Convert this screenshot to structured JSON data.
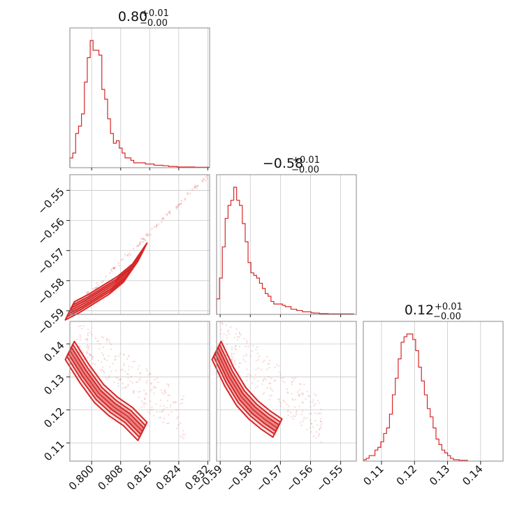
{
  "color": "#d62728",
  "chart_data": {
    "type": "corner",
    "parameters": [
      {
        "title_main": "0.80",
        "title_plus": "+0.01",
        "title_minus": "−0.00",
        "range": [
          0.794,
          0.8325
        ],
        "ticks": [
          0.8,
          0.808,
          0.816,
          0.824,
          0.832
        ],
        "tick_labels": [
          "0.800",
          "0.808",
          "0.816",
          "0.824",
          "0.832"
        ],
        "hist": {
          "edges_start": 0.794,
          "bin_width": 0.0008,
          "counts": [
            4,
            6,
            14,
            17,
            22,
            35,
            45,
            52,
            48,
            48,
            46,
            32,
            28,
            20,
            14,
            10,
            11,
            8,
            6,
            4,
            4,
            3,
            2,
            2,
            2,
            2,
            1.5,
            1.5,
            1.5,
            1,
            1,
            1,
            0.8,
            0.8,
            0.5,
            0.5,
            0.5,
            0.3,
            0.3,
            0.3,
            0.3,
            0.3,
            0.3,
            0.2,
            0.2,
            0.2,
            0.2,
            0.2
          ]
        }
      },
      {
        "title_main": "−0.58",
        "title_plus": "+0.01",
        "title_minus": "−0.00",
        "range": [
          -0.5912,
          -0.5448
        ],
        "ticks": [
          -0.59,
          -0.58,
          -0.57,
          -0.56,
          -0.55
        ],
        "tick_labels": [
          "−0.59",
          "−0.58",
          "−0.57",
          "−0.56",
          "−0.55"
        ],
        "hist": {
          "edges_start": -0.5912,
          "bin_width": 0.00095,
          "counts": [
            6,
            14,
            26,
            37,
            42,
            44,
            49,
            44,
            42,
            35,
            28,
            20,
            16,
            15,
            14,
            12,
            10,
            8,
            7,
            5,
            4,
            4,
            4,
            3.5,
            3,
            3,
            2,
            2,
            1.5,
            1.5,
            1,
            1,
            1,
            0.6,
            0.5,
            0.5,
            0.3,
            0.3,
            0.3,
            0.2,
            0.2,
            0.2,
            0.2,
            0.2,
            0.2,
            0.2,
            0.2,
            0.2
          ]
        }
      },
      {
        "title_main": "0.12",
        "title_plus": "+0.01",
        "title_minus": "−0.00",
        "range": [
          0.1045,
          0.1468
        ],
        "ticks": [
          0.11,
          0.12,
          0.13,
          0.14
        ],
        "tick_labels": [
          "0.11",
          "0.12",
          "0.13",
          "0.14"
        ],
        "hist": {
          "edges_start": 0.1045,
          "bin_width": 0.00088,
          "counts": [
            0.5,
            1,
            2,
            2,
            4,
            5,
            7,
            10,
            12,
            17,
            24,
            30,
            37,
            43,
            45,
            46,
            46,
            44,
            40,
            34,
            29,
            24,
            19,
            16,
            12,
            8,
            6,
            4,
            3,
            2,
            1,
            0.5,
            0.5,
            0.3,
            0.3,
            0.3
          ]
        }
      }
    ],
    "pairs": [
      {
        "x_param": 0,
        "y_param": 1,
        "band": {
          "x": [
            0.794,
            0.798,
            0.802,
            0.806,
            0.81,
            0.814
          ],
          "y": [
            -0.59,
            -0.5875,
            -0.5845,
            -0.5815,
            -0.5775,
            -0.5705
          ]
        },
        "scatter_line": {
          "x": [
            0.794,
            0.832
          ],
          "y": [
            -0.5905,
            -0.5452
          ]
        }
      },
      {
        "x_param": 0,
        "y_param": 2,
        "band": {
          "x": [
            0.794,
            0.798,
            0.802,
            0.806,
            0.81,
            0.814
          ],
          "y": [
            0.138,
            0.131,
            0.125,
            0.121,
            0.118,
            0.1135
          ]
        },
        "scatter_cloud": {
          "x": [
            0.796,
            0.826
          ],
          "y": [
            0.111,
            0.14
          ]
        }
      },
      {
        "x_param": 1,
        "y_param": 2,
        "band": {
          "x": [
            -0.5912,
            -0.587,
            -0.583,
            -0.579,
            -0.575,
            -0.571
          ],
          "y": [
            0.138,
            0.13,
            0.124,
            0.12,
            0.117,
            0.1145
          ]
        },
        "scatter_cloud": {
          "x": [
            -0.59,
            -0.556
          ],
          "y": [
            0.11,
            0.14
          ]
        }
      }
    ],
    "grid": true
  }
}
